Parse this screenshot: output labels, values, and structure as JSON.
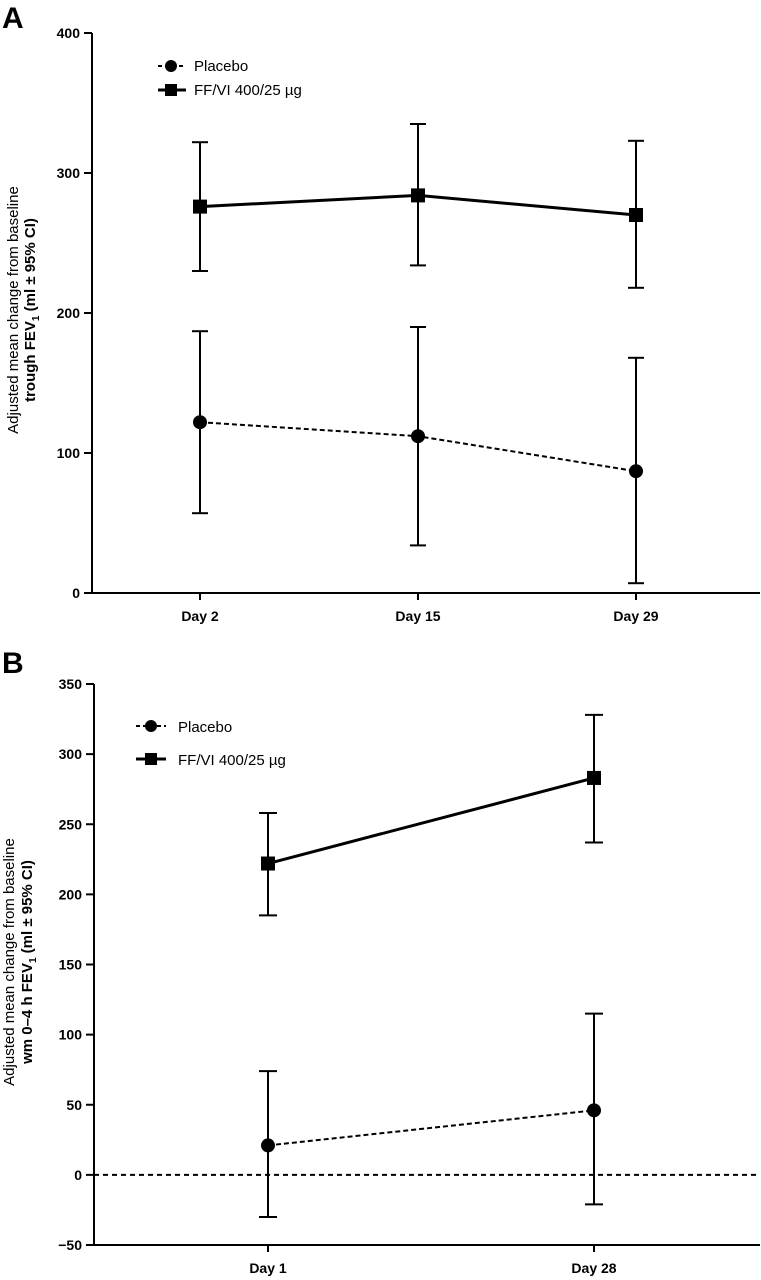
{
  "chart_data": [
    {
      "panel": "A",
      "type": "line",
      "categories": [
        "Day 2",
        "Day 15",
        "Day 29"
      ],
      "ylabel_line1": "Adjusted mean change from baseline",
      "ylabel_line2_prefix": "trough FEV",
      "ylabel_line2_sub": "1",
      "ylabel_line2_suffix": " (ml ± 95% CI)",
      "ylim": [
        0,
        400
      ],
      "yticks": [
        0,
        100,
        200,
        300,
        400
      ],
      "reference_line": 0,
      "legend_placement": "top-left",
      "series": [
        {
          "name": "Placebo",
          "marker": "circle",
          "line_style": "dashed",
          "values": [
            122,
            112,
            87
          ],
          "ci_low": [
            57,
            34,
            7
          ],
          "ci_high": [
            187,
            190,
            168
          ]
        },
        {
          "name": "FF/VI 400/25 µg",
          "marker": "square",
          "line_style": "solid",
          "values": [
            276,
            284,
            270
          ],
          "ci_low": [
            230,
            234,
            218
          ],
          "ci_high": [
            322,
            335,
            323
          ]
        }
      ]
    },
    {
      "panel": "B",
      "type": "line",
      "categories": [
        "Day 1",
        "Day 28"
      ],
      "ylabel_line1": "Adjusted mean change from baseline",
      "ylabel_line2_prefix": "wm 0–4 h FEV",
      "ylabel_line2_sub": "1",
      "ylabel_line2_suffix": " (ml ± 95% CI)",
      "ylim": [
        -50,
        350
      ],
      "yticks": [
        -50,
        0,
        50,
        100,
        150,
        200,
        250,
        300,
        350
      ],
      "reference_line": 0,
      "legend_placement": "top-left",
      "series": [
        {
          "name": "Placebo",
          "marker": "circle",
          "line_style": "dashed",
          "values": [
            21,
            46
          ],
          "ci_low": [
            -30,
            -21
          ],
          "ci_high": [
            74,
            115
          ]
        },
        {
          "name": "FF/VI 400/25 µg",
          "marker": "square",
          "line_style": "solid",
          "values": [
            222,
            283
          ],
          "ci_low": [
            185,
            237
          ],
          "ci_high": [
            258,
            328
          ]
        }
      ]
    }
  ]
}
